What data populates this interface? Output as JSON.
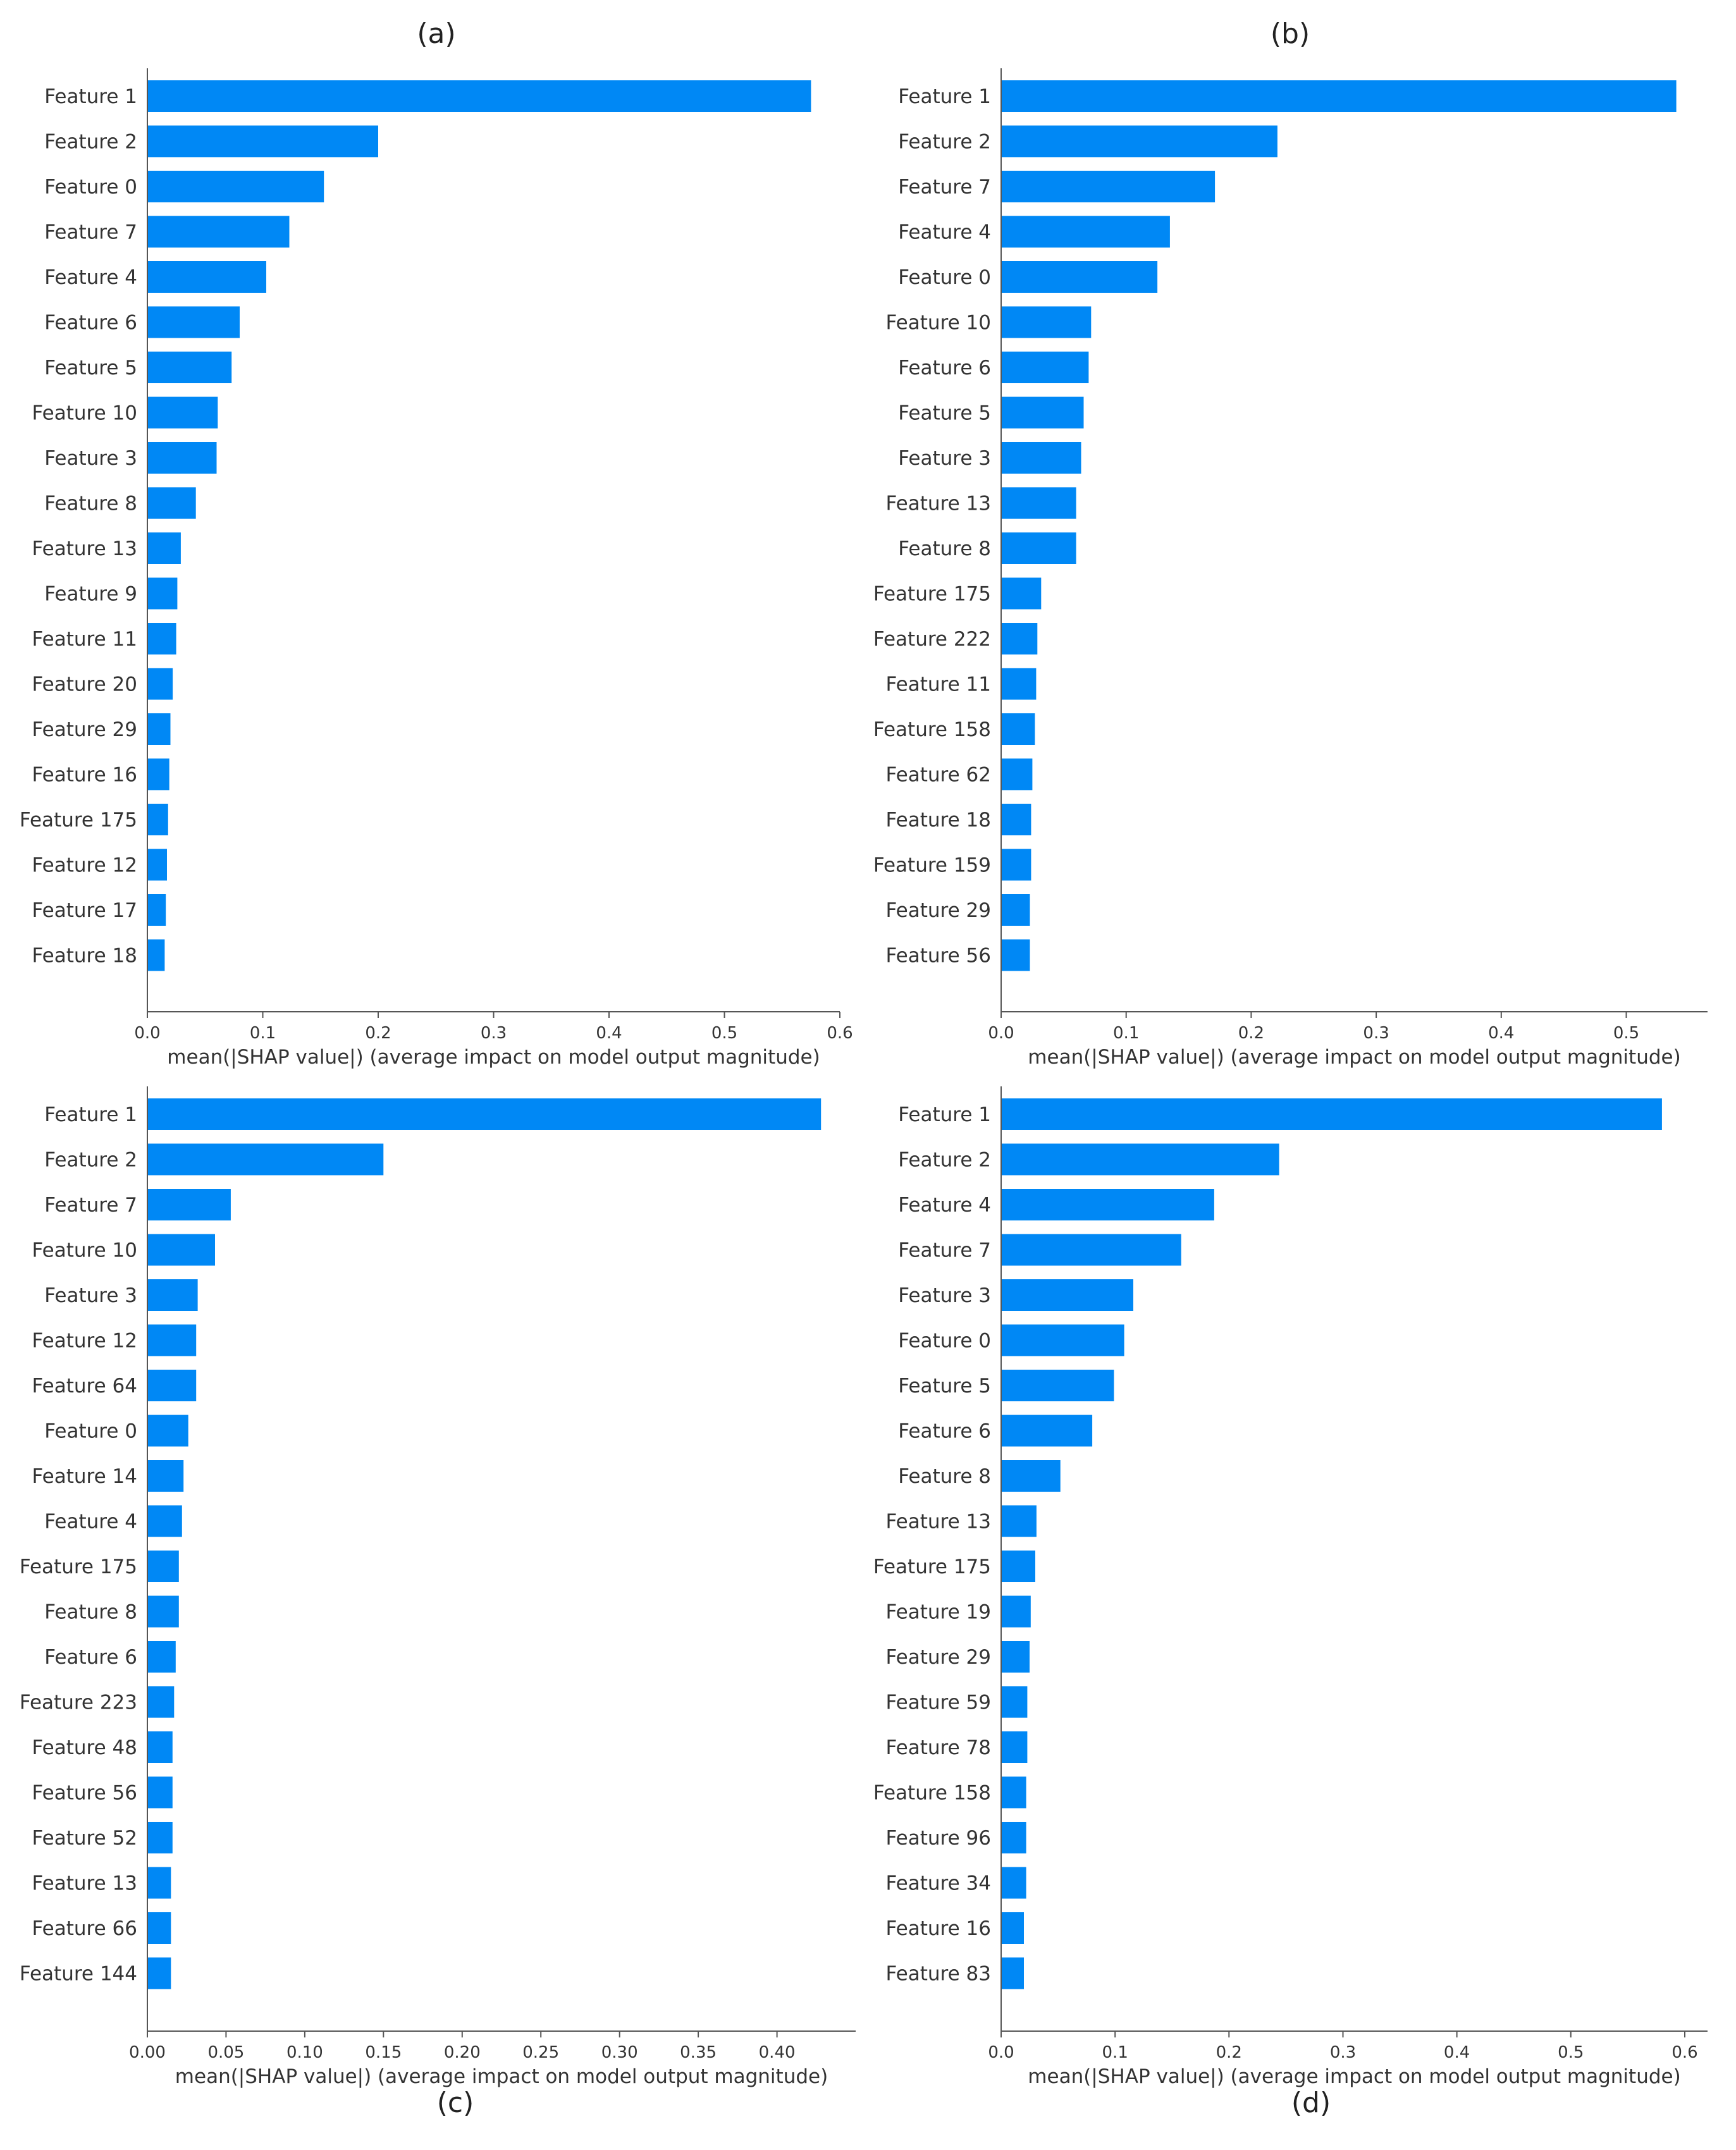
{
  "figure": {
    "bar_color": "#0088f5",
    "axis_color": "#555555",
    "text_color": "#333333"
  },
  "chart_data": [
    {
      "type": "bar",
      "orientation": "horizontal",
      "panel_label": "(a)",
      "xlabel": "mean(|SHAP value|) (average impact on model output magnitude)",
      "xlim": [
        0,
        0.6
      ],
      "xticks": [
        "0.0",
        "0.1",
        "0.2",
        "0.3",
        "0.4",
        "0.5",
        "0.6"
      ],
      "xtick_values": [
        0,
        0.1,
        0.2,
        0.3,
        0.4,
        0.5,
        0.6
      ],
      "categories": [
        "Feature 1",
        "Feature 2",
        "Feature 0",
        "Feature 7",
        "Feature 4",
        "Feature 6",
        "Feature 5",
        "Feature 10",
        "Feature 3",
        "Feature 8",
        "Feature 13",
        "Feature 9",
        "Feature 11",
        "Feature 20",
        "Feature 29",
        "Feature 16",
        "Feature 175",
        "Feature 12",
        "Feature 17",
        "Feature 18"
      ],
      "values": [
        0.575,
        0.2,
        0.153,
        0.123,
        0.103,
        0.08,
        0.073,
        0.061,
        0.06,
        0.042,
        0.029,
        0.026,
        0.025,
        0.022,
        0.02,
        0.019,
        0.018,
        0.017,
        0.016,
        0.015
      ],
      "grid": false
    },
    {
      "type": "bar",
      "orientation": "horizontal",
      "panel_label": "(b)",
      "xlabel": "mean(|SHAP value|) (average impact on model output magnitude)",
      "xlim": [
        0,
        0.565
      ],
      "xticks": [
        "0.0",
        "0.1",
        "0.2",
        "0.3",
        "0.4",
        "0.5"
      ],
      "xtick_values": [
        0,
        0.1,
        0.2,
        0.3,
        0.4,
        0.5
      ],
      "categories": [
        "Feature 1",
        "Feature 2",
        "Feature 7",
        "Feature 4",
        "Feature 0",
        "Feature 10",
        "Feature 6",
        "Feature 5",
        "Feature 3",
        "Feature 13",
        "Feature 8",
        "Feature 175",
        "Feature 222",
        "Feature 11",
        "Feature 158",
        "Feature 62",
        "Feature 18",
        "Feature 159",
        "Feature 29",
        "Feature 56"
      ],
      "values": [
        0.54,
        0.221,
        0.171,
        0.135,
        0.125,
        0.072,
        0.07,
        0.066,
        0.064,
        0.06,
        0.06,
        0.032,
        0.029,
        0.028,
        0.027,
        0.025,
        0.024,
        0.024,
        0.023,
        0.023
      ],
      "grid": false
    },
    {
      "type": "bar",
      "orientation": "horizontal",
      "panel_label": "(c)",
      "xlabel": "mean(|SHAP value|) (average impact on model output magnitude)",
      "xlim": [
        0,
        0.45
      ],
      "xticks": [
        "0.00",
        "0.05",
        "0.10",
        "0.15",
        "0.20",
        "0.25",
        "0.30",
        "0.35",
        "0.40"
      ],
      "xtick_values": [
        0,
        0.05,
        0.1,
        0.15,
        0.2,
        0.25,
        0.3,
        0.35,
        0.4
      ],
      "categories": [
        "Feature 1",
        "Feature 2",
        "Feature 7",
        "Feature 10",
        "Feature 3",
        "Feature 12",
        "Feature 64",
        "Feature 0",
        "Feature 14",
        "Feature 4",
        "Feature 175",
        "Feature 8",
        "Feature 6",
        "Feature 223",
        "Feature 48",
        "Feature 56",
        "Feature 52",
        "Feature 13",
        "Feature 66",
        "Feature 144"
      ],
      "values": [
        0.428,
        0.15,
        0.053,
        0.043,
        0.032,
        0.031,
        0.031,
        0.026,
        0.023,
        0.022,
        0.02,
        0.02,
        0.018,
        0.017,
        0.016,
        0.016,
        0.016,
        0.015,
        0.015,
        0.015
      ],
      "grid": false
    },
    {
      "type": "bar",
      "orientation": "horizontal",
      "panel_label": "(d)",
      "xlabel": "mean(|SHAP value|) (average impact on model output magnitude)",
      "xlim": [
        0,
        0.62
      ],
      "xticks": [
        "0.0",
        "0.1",
        "0.2",
        "0.3",
        "0.4",
        "0.5",
        "0.6"
      ],
      "xtick_values": [
        0,
        0.1,
        0.2,
        0.3,
        0.4,
        0.5,
        0.6
      ],
      "categories": [
        "Feature 1",
        "Feature 2",
        "Feature 4",
        "Feature 7",
        "Feature 3",
        "Feature 0",
        "Feature 5",
        "Feature 6",
        "Feature 8",
        "Feature 13",
        "Feature 175",
        "Feature 19",
        "Feature 29",
        "Feature 59",
        "Feature 78",
        "Feature 158",
        "Feature 96",
        "Feature 34",
        "Feature 16",
        "Feature 83"
      ],
      "values": [
        0.58,
        0.244,
        0.187,
        0.158,
        0.116,
        0.108,
        0.099,
        0.08,
        0.052,
        0.031,
        0.03,
        0.026,
        0.025,
        0.023,
        0.023,
        0.022,
        0.022,
        0.022,
        0.02,
        0.02
      ],
      "grid": false
    }
  ]
}
